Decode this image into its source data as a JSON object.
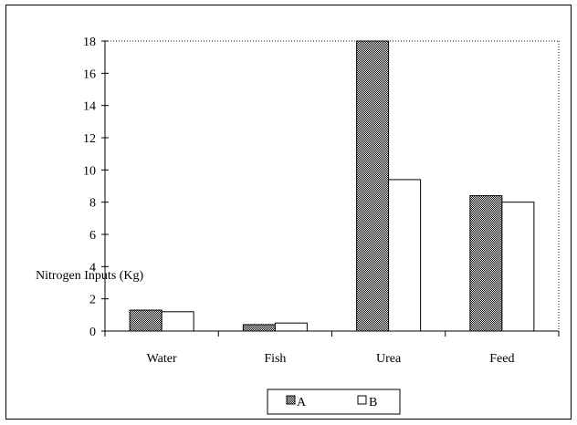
{
  "chart_data": {
    "type": "bar",
    "title": "",
    "xlabel": "",
    "ylabel": "Nitrogen Inputs (Kg)",
    "categories": [
      "Water",
      "Fish",
      "Urea",
      "Feed"
    ],
    "series": [
      {
        "name": "A",
        "values": [
          1.3,
          0.4,
          18,
          8.4
        ]
      },
      {
        "name": "B",
        "values": [
          1.2,
          0.5,
          9.4,
          8.0
        ]
      }
    ],
    "ylim": [
      0,
      18
    ],
    "yticks": [
      0,
      2,
      4,
      6,
      8,
      10,
      12,
      14,
      16,
      18
    ],
    "grid": false,
    "legend_position": "bottom-center",
    "series_styles": {
      "A": "hatched-gray",
      "B": "white"
    }
  }
}
